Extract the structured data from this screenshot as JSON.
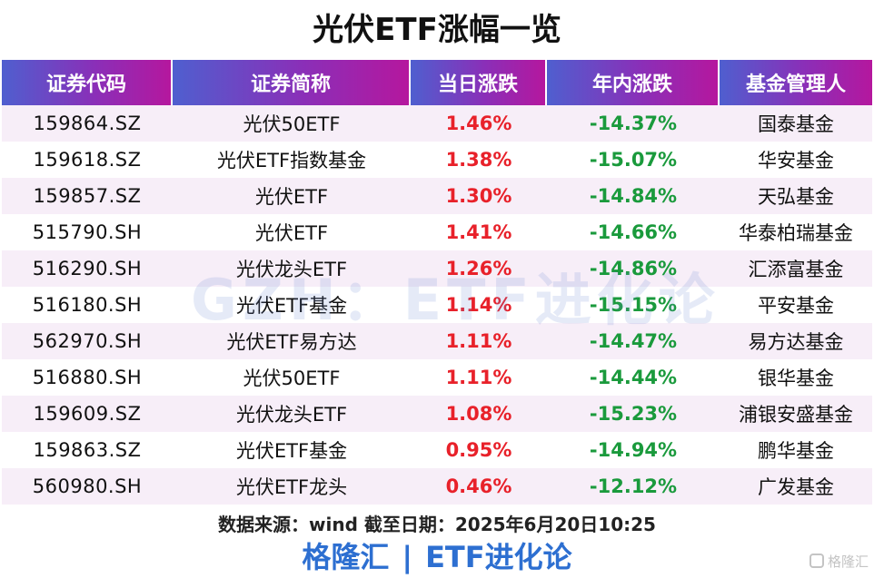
{
  "title": "光伏ETF涨幅一览",
  "headers": [
    "证券代码",
    "证券简称",
    "当日涨跌",
    "年内涨跌",
    "基金管理人"
  ],
  "rows": [
    {
      "code": "159864.SZ",
      "name": "光伏50ETF",
      "day": "1.46%",
      "ytd": "-14.37%",
      "manager": "国泰基金"
    },
    {
      "code": "159618.SZ",
      "name": "光伏ETF指数基金",
      "day": "1.38%",
      "ytd": "-15.07%",
      "manager": "华安基金"
    },
    {
      "code": "159857.SZ",
      "name": "光伏ETF",
      "day": "1.30%",
      "ytd": "-14.84%",
      "manager": "天弘基金"
    },
    {
      "code": "515790.SH",
      "name": "光伏ETF",
      "day": "1.41%",
      "ytd": "-14.66%",
      "manager": "华泰柏瑞基金"
    },
    {
      "code": "516290.SH",
      "name": "光伏龙头ETF",
      "day": "1.26%",
      "ytd": "-14.86%",
      "manager": "汇添富基金"
    },
    {
      "code": "516180.SH",
      "name": "光伏ETF基金",
      "day": "1.14%",
      "ytd": "-15.15%",
      "manager": "平安基金"
    },
    {
      "code": "562970.SH",
      "name": "光伏ETF易方达",
      "day": "1.11%",
      "ytd": "-14.47%",
      "manager": "易方达基金"
    },
    {
      "code": "516880.SH",
      "name": "光伏50ETF",
      "day": "1.11%",
      "ytd": "-14.44%",
      "manager": "银华基金"
    },
    {
      "code": "159609.SZ",
      "name": "光伏龙头ETF",
      "day": "1.08%",
      "ytd": "-15.23%",
      "manager": "浦银安盛基金"
    },
    {
      "code": "159863.SZ",
      "name": "光伏ETF基金",
      "day": "0.95%",
      "ytd": "-14.94%",
      "manager": "鹏华基金"
    },
    {
      "code": "560980.SH",
      "name": "光伏ETF龙头",
      "day": "0.46%",
      "ytd": "-12.12%",
      "manager": "广发基金"
    }
  ],
  "watermark": "GZH：ETF进化论",
  "source": "数据来源：wind  截至日期：2025年6月20日10:25",
  "footer": {
    "left": "格隆汇",
    "sep": "|",
    "right": "ETF进化论"
  },
  "logo": {
    "icon": "gelonghui-logo-icon",
    "text": "格隆汇"
  },
  "colors": {
    "up": "#e8212a",
    "down": "#1a9a3c",
    "header_start": "#4f5fcf",
    "header_end": "#b5179e",
    "footer": "#2d6fd1"
  }
}
